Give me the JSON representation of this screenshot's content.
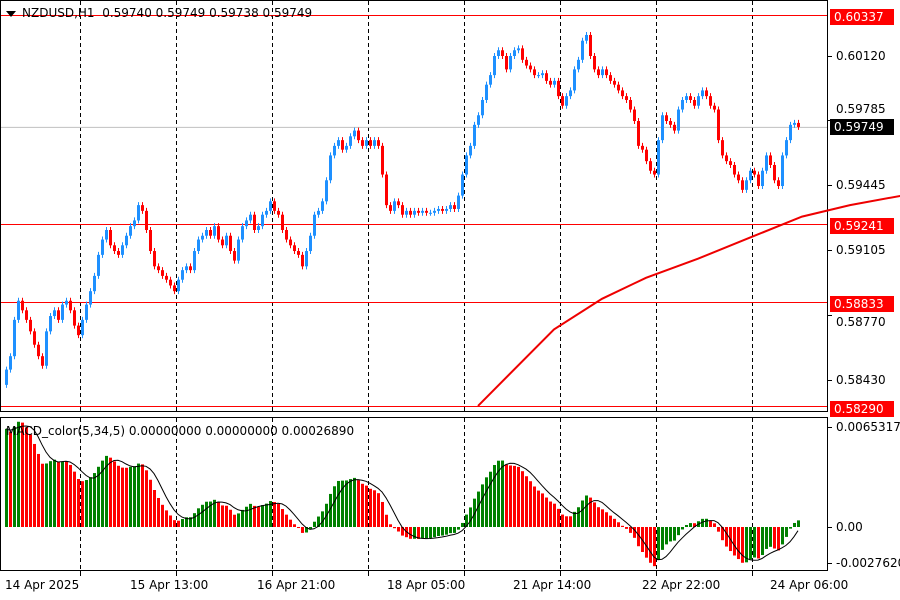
{
  "header": {
    "symbol": "NZDUSD,H1",
    "ohlc": "0.59740 0.59749 0.59738 0.59749"
  },
  "macd_header": "MACD_color(5,34,5) 0.00000000 0.00000000 0.00026890",
  "price_axis": [
    "0.60120",
    "0.59785",
    "0.59445",
    "0.59105",
    "0.58770",
    "0.58430"
  ],
  "macd_axis": [
    "0.0065317",
    "0.00",
    "-0.0027620"
  ],
  "levels": [
    {
      "label": "0.60337",
      "value": 0.60337
    },
    {
      "label": "0.59241",
      "value": 0.59241
    },
    {
      "label": "0.58833",
      "value": 0.58833
    },
    {
      "label": "0.58290",
      "value": 0.5829
    }
  ],
  "current_price": {
    "label": "0.59749",
    "value": 0.59749
  },
  "time_axis": [
    "14 Apr 2025",
    "15 Apr 13:00",
    "16 Apr 21:00",
    "18 Apr 05:00",
    "21 Apr 14:00",
    "22 Apr 22:00",
    "24 Apr 06:00"
  ],
  "colors": {
    "bull": "#1e90ff",
    "bear": "#ff0000",
    "level": "#ff0000",
    "ma": "#ee0000",
    "macd_up": "#008000",
    "macd_down": "#ff0000",
    "signal": "#000000"
  },
  "chart_data": {
    "type": "candlestick",
    "symbol": "NZDUSD",
    "timeframe": "H1",
    "closes": [
      0.5848,
      0.5855,
      0.5874,
      0.5884,
      0.5879,
      0.5874,
      0.5868,
      0.5861,
      0.5855,
      0.585,
      0.5868,
      0.5876,
      0.5879,
      0.5874,
      0.5882,
      0.5884,
      0.5879,
      0.5871,
      0.5866,
      0.5874,
      0.5882,
      0.5889,
      0.5897,
      0.5908,
      0.5916,
      0.5921,
      0.5913,
      0.591,
      0.5908,
      0.5913,
      0.5918,
      0.5923,
      0.5926,
      0.5934,
      0.5931,
      0.5921,
      0.591,
      0.5902,
      0.59,
      0.5897,
      0.5895,
      0.5892,
      0.5889,
      0.5895,
      0.59,
      0.5902,
      0.59,
      0.591,
      0.5916,
      0.5918,
      0.5921,
      0.5918,
      0.5923,
      0.5916,
      0.5913,
      0.5918,
      0.591,
      0.5905,
      0.5916,
      0.5923,
      0.5926,
      0.5929,
      0.5921,
      0.5923,
      0.5929,
      0.5931,
      0.5936,
      0.5931,
      0.5929,
      0.5921,
      0.5916,
      0.5913,
      0.591,
      0.5908,
      0.5902,
      0.591,
      0.5918,
      0.5929,
      0.5931,
      0.5936,
      0.5947,
      0.596,
      0.5965,
      0.5968,
      0.5963,
      0.5965,
      0.597,
      0.5973,
      0.5968,
      0.5965,
      0.5968,
      0.5965,
      0.5968,
      0.5965,
      0.595,
      0.5934,
      0.5931,
      0.5936,
      0.5934,
      0.5929,
      0.5931,
      0.5929,
      0.5931,
      0.593,
      0.5931,
      0.593,
      0.593,
      0.5931,
      0.5932,
      0.5931,
      0.5932,
      0.5934,
      0.5932,
      0.5939,
      0.595,
      0.596,
      0.5965,
      0.5976,
      0.5981,
      0.5989,
      0.5997,
      0.6002,
      0.6012,
      0.6015,
      0.6012,
      0.6005,
      0.6012,
      0.6015,
      0.6016,
      0.601,
      0.6007,
      0.6005,
      0.6002,
      0.6002,
      0.6003,
      0.5999,
      0.5997,
      0.5999,
      0.5991,
      0.5986,
      0.5991,
      0.5994,
      0.6005,
      0.601,
      0.602,
      0.6023,
      0.6012,
      0.6005,
      0.6002,
      0.6005,
      0.6002,
      0.5999,
      0.5997,
      0.5994,
      0.5991,
      0.5989,
      0.5984,
      0.5978,
      0.5965,
      0.5963,
      0.5957,
      0.5952,
      0.595,
      0.5968,
      0.5981,
      0.5978,
      0.5976,
      0.5973,
      0.5984,
      0.5989,
      0.5991,
      0.5989,
      0.5986,
      0.5991,
      0.5994,
      0.5991,
      0.5986,
      0.5984,
      0.5968,
      0.596,
      0.5957,
      0.5955,
      0.595,
      0.5947,
      0.5942,
      0.5947,
      0.5952,
      0.595,
      0.5944,
      0.5952,
      0.596,
      0.5955,
      0.5947,
      0.5944,
      0.596,
      0.5968,
      0.5976,
      0.5977,
      0.59749
    ],
    "moving_average": [
      [
        118,
        0.5829
      ],
      [
        137,
        0.5869
      ],
      [
        149,
        0.5885
      ],
      [
        160,
        0.5896
      ],
      [
        173,
        0.5906
      ],
      [
        186,
        0.5917
      ],
      [
        199,
        0.5928
      ],
      [
        211,
        0.5934
      ],
      [
        224,
        0.5939
      ],
      [
        237,
        0.5944
      ],
      [
        249,
        0.5946
      ]
    ],
    "macd": {
      "fast": 5,
      "slow": 34,
      "signal": 5,
      "ylim": [
        -0.002762,
        0.0065317
      ]
    },
    "ylim": [
      0.5829,
      0.60337
    ]
  }
}
